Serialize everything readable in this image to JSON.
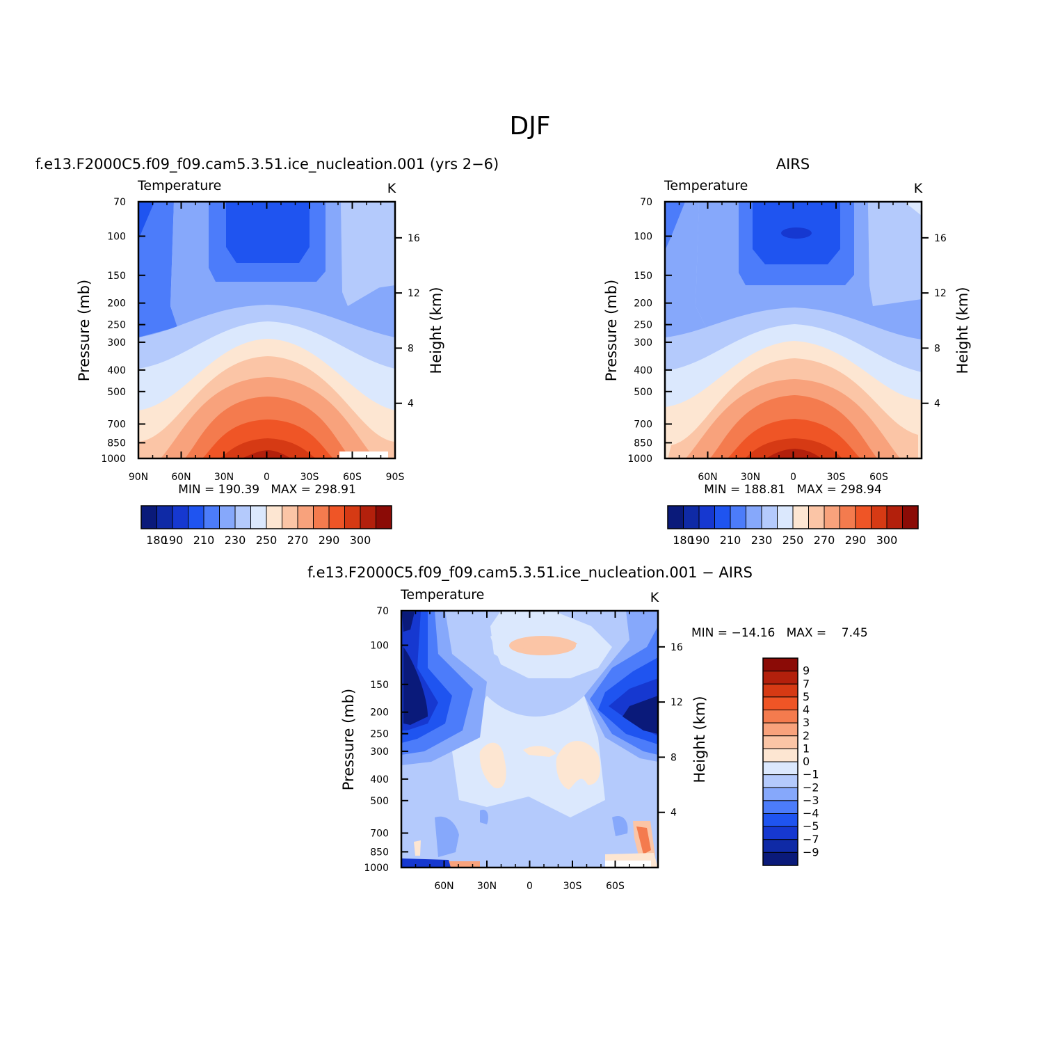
{
  "page_title": "DJF",
  "chart_data": [
    {
      "type": "heatmap",
      "id": "model",
      "title": "f.e13.F2000C5.f09_f09.cam5.3.51.ice_nucleation.001 (yrs 2−6)",
      "variable": "Temperature",
      "units": "K",
      "ylabel": "Pressure (mb)",
      "y2label": "Height (km)",
      "x_ticks": [
        "90N",
        "60N",
        "30N",
        "0",
        "30S",
        "60S",
        "90S"
      ],
      "y_ticks": [
        "70",
        "100",
        "150",
        "200",
        "250",
        "300",
        "400",
        "500",
        "700",
        "850",
        "1000"
      ],
      "y2_ticks": [
        "16",
        "12",
        "8",
        "4"
      ],
      "stats": "MIN = 190.39   MAX = 298.91",
      "colorbar_labels": [
        "180",
        "190",
        "210",
        "230",
        "250",
        "270",
        "290",
        "300"
      ],
      "levels": [
        180,
        190,
        200,
        210,
        220,
        230,
        240,
        250,
        260,
        270,
        280,
        290,
        300
      ]
    },
    {
      "type": "heatmap",
      "id": "obs",
      "title": "AIRS",
      "variable": "Temperature",
      "units": "K",
      "ylabel": "Pressure (mb)",
      "y2label": "Height (km)",
      "x_ticks": [
        "60N",
        "30N",
        "0",
        "30S",
        "60S"
      ],
      "y_ticks": [
        "70",
        "100",
        "150",
        "200",
        "250",
        "300",
        "400",
        "500",
        "700",
        "850",
        "1000"
      ],
      "y2_ticks": [
        "16",
        "12",
        "8",
        "4"
      ],
      "stats": "MIN = 188.81   MAX = 298.94",
      "colorbar_labels": [
        "180",
        "190",
        "210",
        "230",
        "250",
        "270",
        "290",
        "300"
      ],
      "levels": [
        180,
        190,
        200,
        210,
        220,
        230,
        240,
        250,
        260,
        270,
        280,
        290,
        300
      ]
    },
    {
      "type": "heatmap",
      "id": "diff",
      "title": "f.e13.F2000C5.f09_f09.cam5.3.51.ice_nucleation.001 − AIRS",
      "variable": "Temperature",
      "units": "K",
      "ylabel": "Pressure (mb)",
      "y2label": "Height (km)",
      "x_ticks": [
        "60N",
        "30N",
        "0",
        "30S",
        "60S"
      ],
      "y_ticks": [
        "70",
        "100",
        "150",
        "200",
        "250",
        "300",
        "400",
        "500",
        "700",
        "850",
        "1000"
      ],
      "y2_ticks": [
        "16",
        "12",
        "8",
        "4"
      ],
      "stats": "MIN = −14.16   MAX =    7.45",
      "colorbar_labels": [
        "9",
        "7",
        "5",
        "4",
        "3",
        "2",
        "1",
        "0",
        "−1",
        "−2",
        "−3",
        "−4",
        "−5",
        "−7",
        "−9"
      ],
      "levels": [
        -9,
        -7,
        -5,
        -4,
        -3,
        -2,
        -1,
        0,
        1,
        2,
        3,
        4,
        5,
        7,
        9
      ]
    }
  ],
  "colors": {
    "palette": [
      "#0a1a7a",
      "#0f2aa6",
      "#1638d0",
      "#1f54f0",
      "#4c7cfa",
      "#86a8fb",
      "#b4cafc",
      "#dbe8fd",
      "#fde6d2",
      "#fbc5a6",
      "#f8a27c",
      "#f47b4e",
      "#ef5526",
      "#d63a14",
      "#b3200c",
      "#8b0b06"
    ]
  }
}
